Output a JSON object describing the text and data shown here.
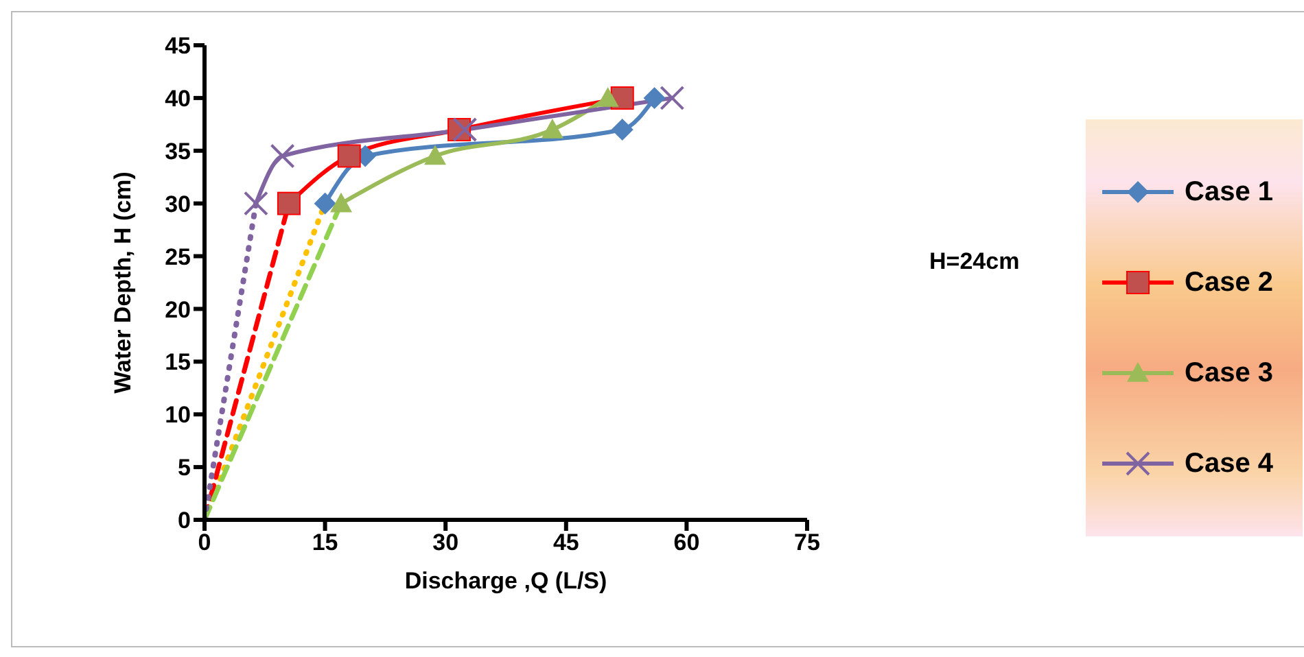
{
  "chart_data": {
    "type": "line",
    "xlabel": "Discharge ,Q (L/S)",
    "ylabel": "Water Depth, H (cm)",
    "xlim": [
      0,
      75
    ],
    "xticks": [
      0,
      15,
      30,
      45,
      60,
      75
    ],
    "ylim": [
      0,
      45
    ],
    "yticks": [
      0,
      5,
      10,
      15,
      20,
      25,
      30,
      35,
      40,
      45
    ],
    "grid": false,
    "legend": "right",
    "annotations": [
      "H=24cm"
    ],
    "series": [
      {
        "name": "Case 1",
        "color": "#4f81bd",
        "marker": "diamond",
        "line_style": "solid",
        "x": [
          15,
          20,
          52,
          56
        ],
        "values": [
          30,
          34.5,
          37,
          40
        ]
      },
      {
        "name": "Case 2",
        "color": "#ff0000",
        "marker": "square",
        "line_style": "solid",
        "x": [
          10.5,
          18,
          31.7,
          52
        ],
        "values": [
          30,
          34.5,
          37,
          40
        ]
      },
      {
        "name": "Case 3",
        "color": "#9bbb59",
        "marker": "triangle",
        "line_style": "solid",
        "x": [
          17,
          28.7,
          43.3,
          50.2
        ],
        "values": [
          30,
          34.5,
          37,
          40
        ]
      },
      {
        "name": "Case 4",
        "color": "#8064a2",
        "marker": "cross",
        "line_style": "solid",
        "x": [
          6.4,
          9.7,
          32.4,
          58.2
        ],
        "values": [
          30,
          34.5,
          37,
          40
        ]
      },
      {
        "color": "#ffc000",
        "marker": "none",
        "line_style": "dotted",
        "x": [
          0,
          15
        ],
        "values": [
          0,
          30
        ]
      },
      {
        "color": "#ff0000",
        "marker": "none",
        "line_style": "dashed",
        "x": [
          0,
          10.5
        ],
        "values": [
          0,
          30
        ]
      },
      {
        "color": "#92d050",
        "marker": "none",
        "line_style": "dashed",
        "x": [
          0,
          17
        ],
        "values": [
          0,
          30
        ]
      },
      {
        "color": "#8064a2",
        "marker": "none",
        "line_style": "dotted",
        "x": [
          0,
          6.4
        ],
        "values": [
          0,
          30
        ]
      }
    ]
  }
}
